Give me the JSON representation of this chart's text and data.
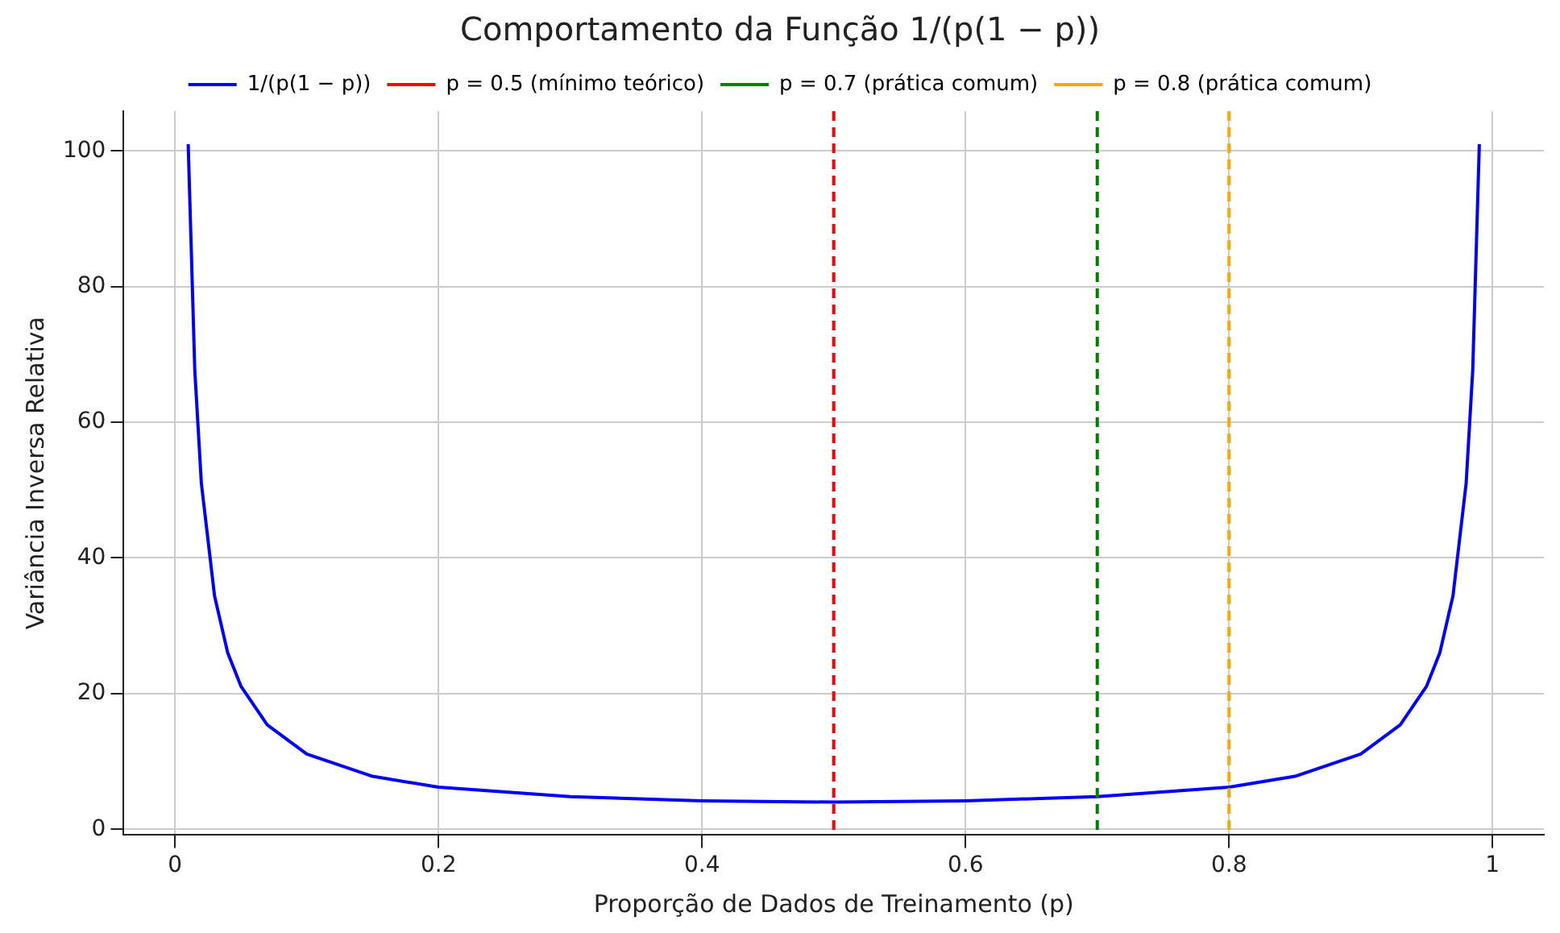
{
  "chart_data": {
    "type": "line",
    "title": "Comportamento da Função 1/(p(1 − p))",
    "xlabel": "Proporção de Dados de Treinamento (p)",
    "ylabel": "Variância Inversa Relativa",
    "x": [
      0.01,
      0.015,
      0.02,
      0.03,
      0.04,
      0.05,
      0.07,
      0.1,
      0.15,
      0.2,
      0.3,
      0.4,
      0.5,
      0.6,
      0.7,
      0.8,
      0.85,
      0.9,
      0.93,
      0.95,
      0.96,
      0.97,
      0.98,
      0.985,
      0.99
    ],
    "series": [
      {
        "name": "1/(p(1 − p))",
        "color": "#0000ff",
        "values": [
          101,
          67.7,
          51,
          34.4,
          26,
          21.1,
          15.4,
          11.1,
          7.8,
          6.2,
          4.8,
          4.2,
          4,
          4.2,
          4.8,
          6.2,
          7.8,
          11.1,
          15.4,
          21.1,
          26,
          34.4,
          51,
          67.7,
          101
        ]
      }
    ],
    "ref_lines": [
      {
        "axis": "x",
        "value": 0.5,
        "label": "p = 0.5 (mínimo teórico)",
        "color": "#ff0000",
        "line_style": "dashed"
      },
      {
        "axis": "x",
        "value": 0.7,
        "label": "p = 0.7 (prática comum)",
        "color": "#008000",
        "line_style": "dashed"
      },
      {
        "axis": "x",
        "value": 0.8,
        "label": "p = 0.8 (prática comum)",
        "color": "#ffa500",
        "line_style": "dashed"
      }
    ],
    "xlim": [
      -0.039,
      1.039
    ],
    "xticks": [
      0,
      0.2,
      0.4,
      0.6,
      0.8,
      1
    ],
    "ylim": [
      -0.85,
      105.86
    ],
    "yticks": [
      0,
      20,
      40,
      60,
      80,
      100
    ],
    "grid": true,
    "legend": "top",
    "marker": "none",
    "line_style": "solid"
  }
}
